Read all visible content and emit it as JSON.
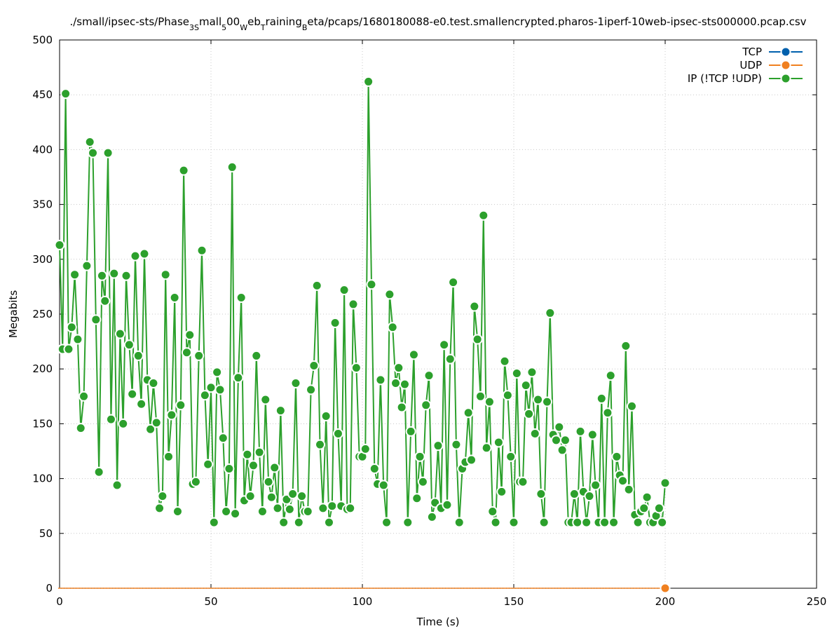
{
  "chart_data": {
    "type": "line",
    "title_parts": {
      "p1": "./small/ipsec-sts/Phase",
      "s1": "3S",
      "p2": "mall",
      "s2": "5",
      "p3": "00",
      "s3": "W",
      "p4": "eb",
      "s4": "T",
      "p5": "raining",
      "s5": "B",
      "p6": "eta/pcaps/1680180088-e0.test.smallencrypted.pharos-1iperf-10web-ipsec-sts000000.pcap.csv"
    },
    "xlabel": "Time (s)",
    "ylabel": "Megabits",
    "xlim": [
      0,
      250
    ],
    "ylim": [
      0,
      500
    ],
    "xticks": [
      0,
      50,
      100,
      150,
      200,
      250
    ],
    "yticks": [
      0,
      50,
      100,
      150,
      200,
      250,
      300,
      350,
      400,
      450,
      500
    ],
    "grid": true,
    "legend_position": "top-right",
    "series": [
      {
        "name": "TCP",
        "color": "#0060ad",
        "x": [],
        "y": []
      },
      {
        "name": "UDP",
        "color": "#f08020",
        "x": [
          200
        ],
        "y": [
          0
        ]
      },
      {
        "name": "IP (!TCP  !UDP)",
        "color": "#2ca02c",
        "x": [
          0,
          1,
          2,
          3,
          4,
          5,
          6,
          7,
          8,
          9,
          10,
          11,
          12,
          13,
          14,
          15,
          16,
          17,
          18,
          19,
          20,
          21,
          22,
          23,
          24,
          25,
          26,
          27,
          28,
          29,
          30,
          31,
          32,
          33,
          34,
          35,
          36,
          37,
          38,
          39,
          40,
          41,
          42,
          43,
          44,
          45,
          46,
          47,
          48,
          49,
          50,
          51,
          52,
          53,
          54,
          55,
          56,
          57,
          58,
          59,
          60,
          61,
          62,
          63,
          64,
          65,
          66,
          67,
          68,
          69,
          70,
          71,
          72,
          73,
          74,
          75,
          76,
          77,
          78,
          79,
          80,
          81,
          82,
          83,
          84,
          85,
          86,
          87,
          88,
          89,
          90,
          91,
          92,
          93,
          94,
          95,
          96,
          97,
          98,
          99,
          100,
          101,
          102,
          103,
          104,
          105,
          106,
          107,
          108,
          109,
          110,
          111,
          112,
          113,
          114,
          115,
          116,
          117,
          118,
          119,
          120,
          121,
          122,
          123,
          124,
          125,
          126,
          127,
          128,
          129,
          130,
          131,
          132,
          133,
          134,
          135,
          136,
          137,
          138,
          139,
          140,
          141,
          142,
          143,
          144,
          145,
          146,
          147,
          148,
          149,
          150,
          151,
          152,
          153,
          154,
          155,
          156,
          157,
          158,
          159,
          160,
          161,
          162,
          163,
          164,
          165,
          166,
          167,
          168,
          169,
          170,
          171,
          172,
          173,
          174,
          175,
          176,
          177,
          178,
          179,
          180,
          181,
          182,
          183,
          184,
          185,
          186,
          187,
          188,
          189,
          190,
          191,
          192,
          193,
          194,
          195,
          196,
          197,
          198,
          199,
          200
        ],
        "y": [
          313,
          218,
          451,
          218,
          238,
          286,
          227,
          146,
          175,
          294,
          407,
          397,
          245,
          106,
          285,
          262,
          397,
          154,
          287,
          94,
          232,
          150,
          285,
          222,
          177,
          303,
          212,
          168,
          305,
          190,
          145,
          187,
          151,
          73,
          84,
          286,
          120,
          158,
          265,
          70,
          167,
          381,
          215,
          231,
          95,
          97,
          212,
          308,
          176,
          113,
          183,
          60,
          197,
          181,
          137,
          70,
          109,
          384,
          68,
          192,
          265,
          80,
          122,
          84,
          112,
          212,
          124,
          70,
          172,
          97,
          83,
          110,
          73,
          162,
          60,
          81,
          72,
          86,
          187,
          60,
          84,
          70,
          70,
          181,
          203,
          276,
          131,
          73,
          157,
          60,
          75,
          242,
          141,
          75,
          272,
          72,
          73,
          259,
          201,
          120,
          120,
          127,
          462,
          277,
          109,
          95,
          190,
          94,
          60,
          268,
          238,
          187,
          201,
          165,
          186,
          60,
          143,
          213,
          82,
          120,
          97,
          167,
          194,
          65,
          78,
          130,
          73,
          222,
          76,
          209,
          279,
          131,
          60,
          109,
          115,
          160,
          117,
          257,
          227,
          175,
          340,
          128,
          170,
          70,
          60,
          133,
          88,
          207,
          176,
          120,
          60,
          196,
          97,
          97,
          185,
          159,
          197,
          141,
          172,
          86,
          60,
          170,
          251,
          140,
          135,
          147,
          126,
          135,
          60,
          60,
          86,
          60,
          143,
          88,
          60,
          84,
          140,
          94,
          60,
          173,
          60,
          160,
          194,
          60,
          120,
          103,
          98,
          221,
          90,
          166,
          67,
          60,
          70,
          73,
          83,
          60,
          60,
          66,
          73,
          60,
          96
        ]
      }
    ]
  }
}
